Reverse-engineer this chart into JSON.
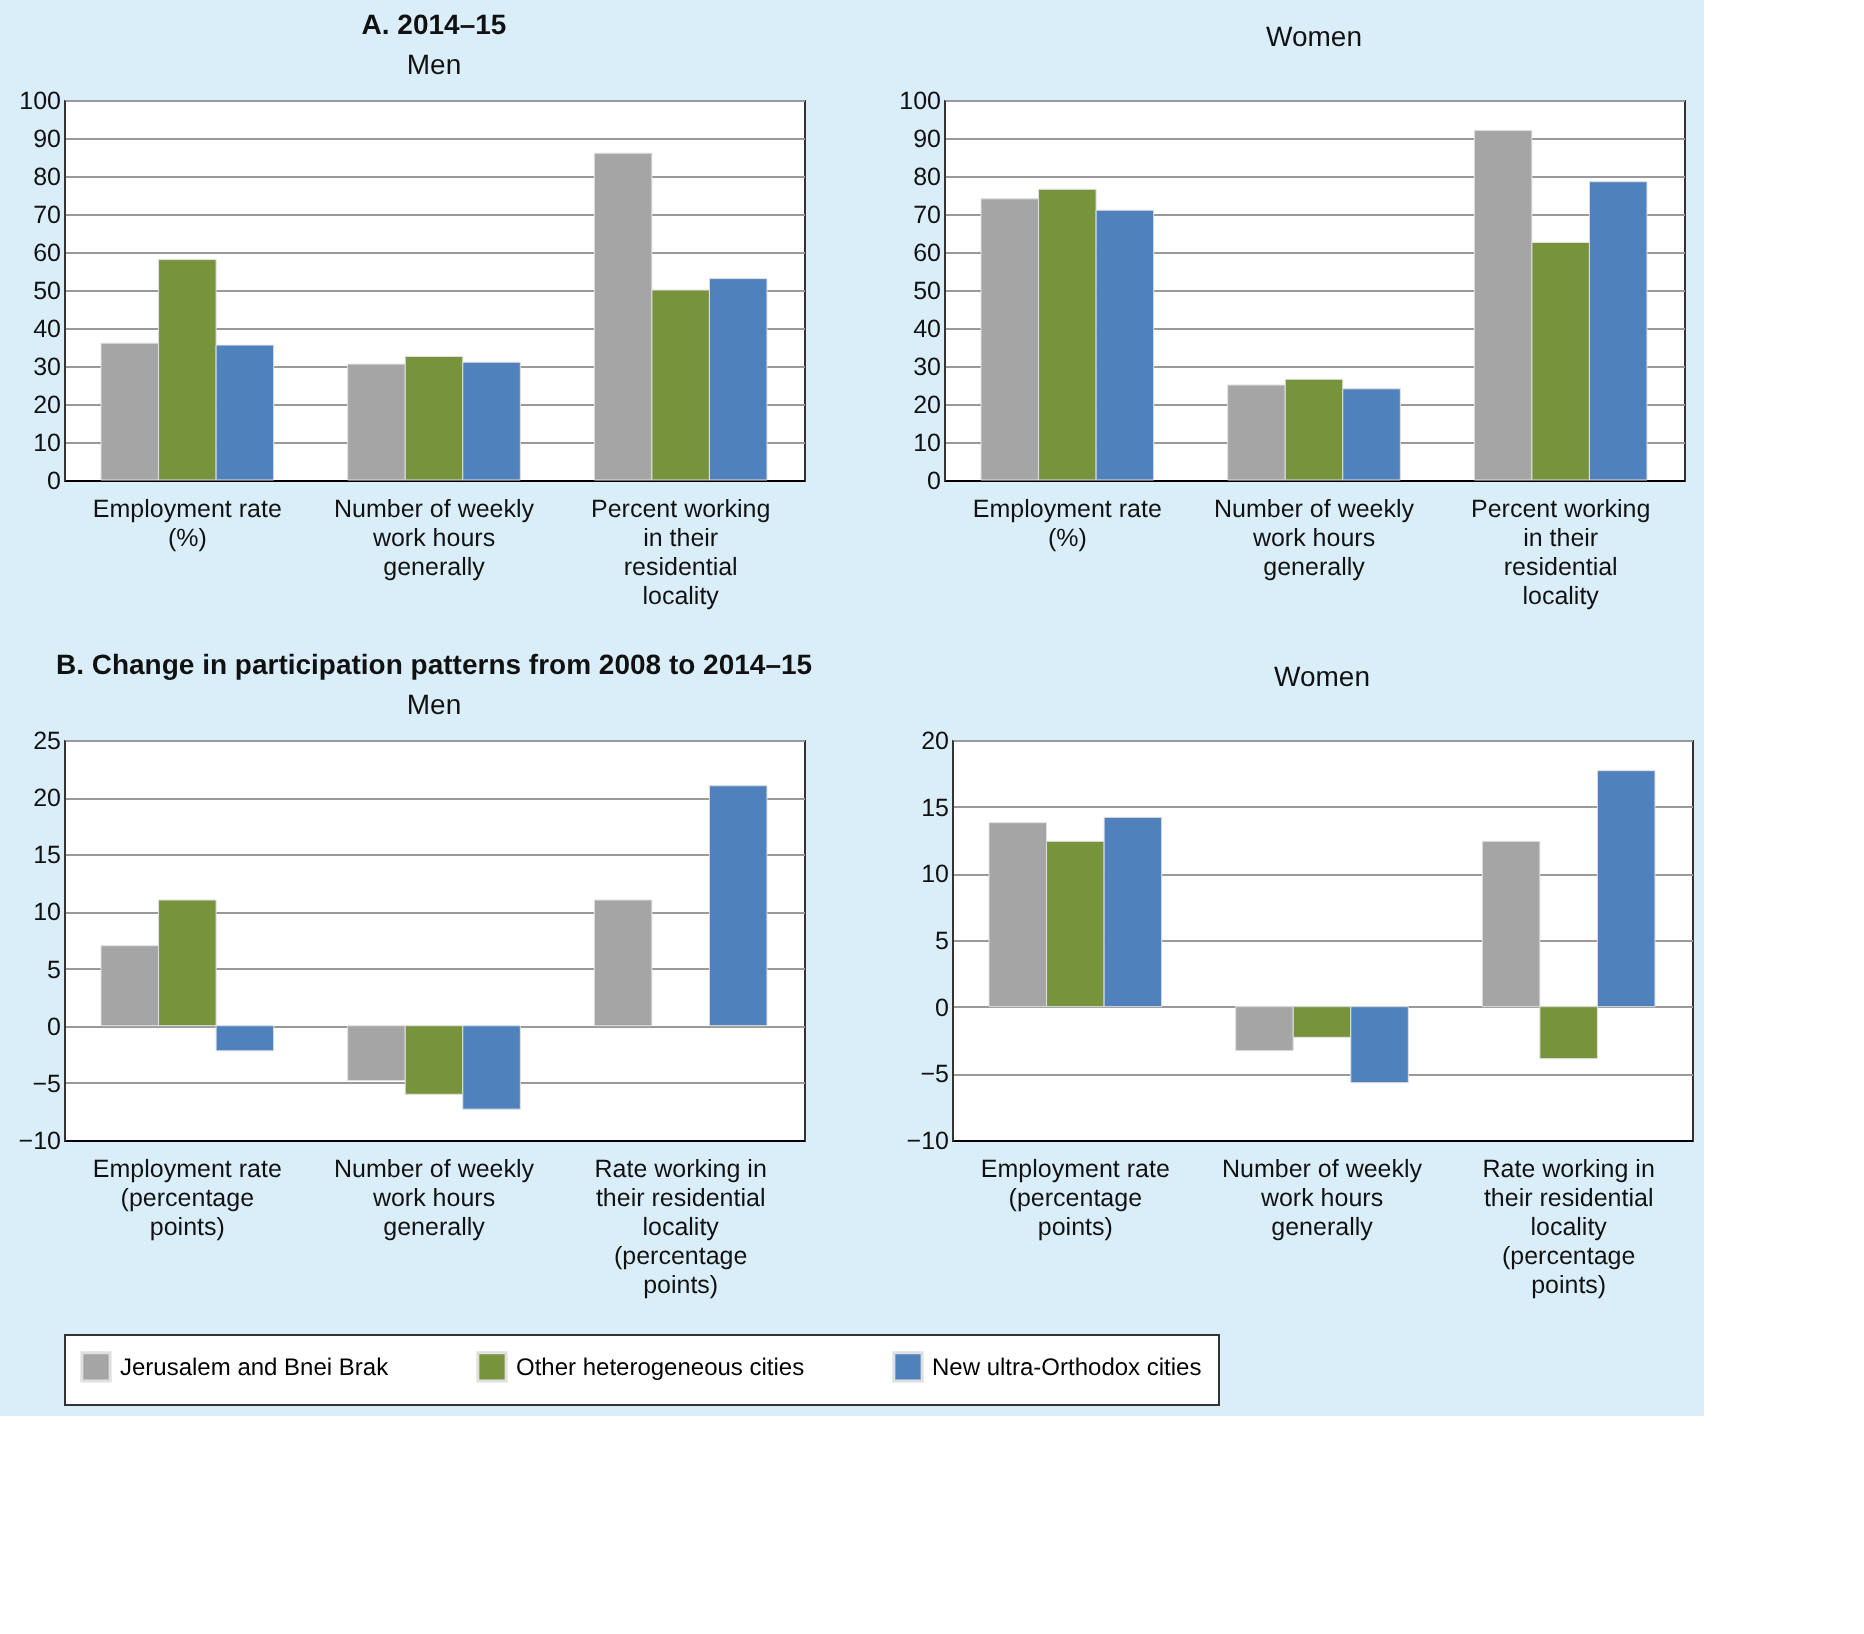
{
  "chart_data": [
    {
      "type": "bar",
      "title": "A. 2014–15",
      "subtitle": "Men",
      "categories": [
        "Employment rate (%)",
        "Number of weekly work hours generally",
        "Percent working in their residential locality"
      ],
      "ylim": [
        0,
        100
      ],
      "yticks": [
        0,
        10,
        20,
        30,
        40,
        50,
        60,
        70,
        80,
        90,
        100
      ],
      "grid": "y",
      "legend": "bottom",
      "series": [
        {
          "name": "Jerusalem and Bnei Brak",
          "color": "#a5a5a5",
          "values": [
            36,
            30.5,
            86
          ]
        },
        {
          "name": "Other heterogeneous cities",
          "color": "#77933c",
          "values": [
            58,
            32.5,
            50
          ]
        },
        {
          "name": "New ultra-Orthodox cities",
          "color": "#4f81bd",
          "values": [
            35.5,
            31,
            53
          ]
        }
      ]
    },
    {
      "type": "bar",
      "subtitle": "Women",
      "categories": [
        "Employment rate (%)",
        "Number of weekly work hours generally",
        "Percent working in their residential locality"
      ],
      "ylim": [
        0,
        100
      ],
      "yticks": [
        0,
        10,
        20,
        30,
        40,
        50,
        60,
        70,
        80,
        90,
        100
      ],
      "grid": "y",
      "legend": "bottom",
      "series": [
        {
          "name": "Jerusalem and Bnei Brak",
          "color": "#a5a5a5",
          "values": [
            74,
            25,
            92
          ]
        },
        {
          "name": "Other heterogeneous cities",
          "color": "#77933c",
          "values": [
            76.5,
            26.5,
            62.5
          ]
        },
        {
          "name": "New ultra-Orthodox cities",
          "color": "#4f81bd",
          "values": [
            71,
            24,
            78.5
          ]
        }
      ]
    },
    {
      "type": "bar",
      "title": "B. Change in participation patterns from 2008 to 2014–15",
      "subtitle": "Men",
      "categories": [
        "Employment rate (percentage points)",
        "Number of weekly work hours generally",
        "Rate working in their residential locality (percentage points)"
      ],
      "ylim": [
        -10,
        25
      ],
      "yticks": [
        -10,
        -5,
        0,
        5,
        10,
        15,
        20,
        25
      ],
      "grid": "y",
      "legend": "bottom",
      "series": [
        {
          "name": "Jerusalem and Bnei Brak",
          "color": "#a5a5a5",
          "values": [
            7,
            -4.8,
            11
          ]
        },
        {
          "name": "Other heterogeneous cities",
          "color": "#77933c",
          "values": [
            11,
            -6,
            null
          ]
        },
        {
          "name": "New ultra-Orthodox cities",
          "color": "#4f81bd",
          "values": [
            -2.2,
            -7.3,
            21
          ]
        }
      ]
    },
    {
      "type": "bar",
      "subtitle": "Women",
      "categories": [
        "Employment rate (percentage points)",
        "Number of weekly work hours generally",
        "Rate working in their residential locality (percentage points)"
      ],
      "ylim": [
        -10,
        20
      ],
      "yticks": [
        -10,
        -5,
        0,
        5,
        10,
        15,
        20
      ],
      "grid": "y",
      "legend": "bottom",
      "series": [
        {
          "name": "Jerusalem and Bnei Brak",
          "color": "#a5a5a5",
          "values": [
            13.8,
            -3.3,
            12.4
          ]
        },
        {
          "name": "Other heterogeneous cities",
          "color": "#77933c",
          "values": [
            12.4,
            -2.3,
            -3.9
          ]
        },
        {
          "name": "New ultra-Orthodox cities",
          "color": "#4f81bd",
          "values": [
            14.2,
            -5.7,
            17.7
          ]
        }
      ]
    }
  ]
}
